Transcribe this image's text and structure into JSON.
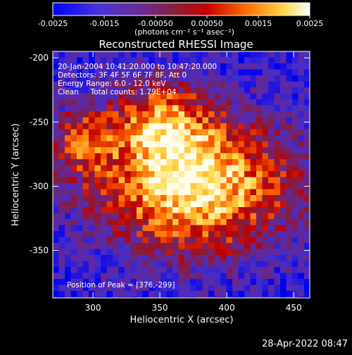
{
  "chart_data": {
    "type": "heatmap",
    "title": "Reconstructed RHESSI Image",
    "xlabel": "Heliocentric X (arcsec)",
    "ylabel": "Heliocentric Y (arcsec)",
    "xlim": [
      270,
      462
    ],
    "ylim": [
      -387,
      -195
    ],
    "x_ticks": [
      300,
      350,
      400,
      450
    ],
    "y_ticks": [
      -200,
      -250,
      -300,
      -350
    ],
    "colorbar": {
      "range": [
        -0.0025,
        0.0025
      ],
      "ticks": [
        "-0.0025",
        "-0.0015",
        "-0.00050",
        "0.00050",
        "0.0015",
        "0.0025"
      ],
      "unit_label": "(photons cm⁻² s⁻¹ asec⁻²)",
      "colors": [
        "#0000ff",
        "#5a2bbf",
        "#8c1f5a",
        "#c00000",
        "#ff6a00",
        "#ffd84d",
        "#ffffff"
      ]
    },
    "annotations": {
      "time_range": "20-Jan-2004 10:41:20.000 to 10:47:20.000",
      "detectors": "Detectors: 3F 4F 5F 6F 7F 8F, Att 0",
      "energy": "Energy Range: 6.0 - 12.0 keV",
      "clean": "Clean     Total counts: 1.79E+04",
      "peak": "Position of Peak = [376,-299]"
    },
    "peak": {
      "x": 376,
      "y": -299
    },
    "timestamp": "28-Apr-2022 08:47"
  }
}
